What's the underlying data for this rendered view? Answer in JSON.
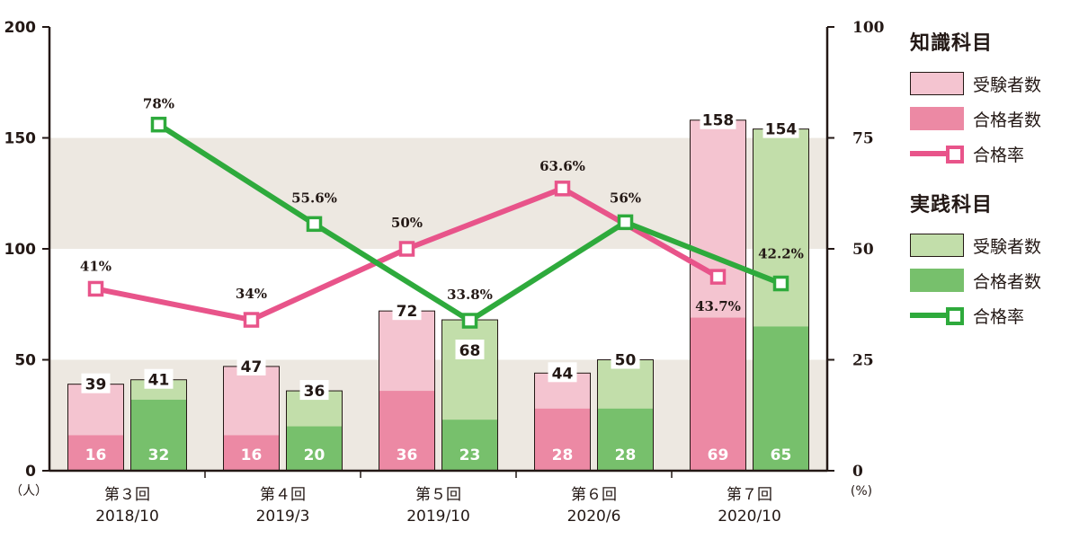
{
  "chart_data": {
    "type": "bar+line",
    "categories": [
      "第３回",
      "第４回",
      "第５回",
      "第６回",
      "第７回"
    ],
    "category_dates": [
      "2018/10",
      "2019/3",
      "2019/10",
      "2020/6",
      "2020/10"
    ],
    "y_left": {
      "unit": "（人）",
      "ylim": [
        0,
        200
      ],
      "ticks": [
        "0",
        "50",
        "100",
        "150",
        "200"
      ]
    },
    "y_right": {
      "unit": "(%)",
      "ylim": [
        0,
        100
      ],
      "ticks": [
        "0",
        "25",
        "50",
        "75",
        "100"
      ]
    },
    "series": [
      {
        "group": "知識科目",
        "name": "受験者数",
        "kind": "bar",
        "values": [
          39,
          47,
          72,
          44,
          158
        ]
      },
      {
        "group": "知識科目",
        "name": "合格者数",
        "kind": "bar",
        "values": [
          16,
          16,
          36,
          28,
          69
        ]
      },
      {
        "group": "知識科目",
        "name": "合格率",
        "kind": "line",
        "values": [
          41,
          34,
          50,
          63.6,
          43.7
        ],
        "labels": [
          "41%",
          "34%",
          "50%",
          "63.6%",
          "43.7%"
        ]
      },
      {
        "group": "実践科目",
        "name": "受験者数",
        "kind": "bar",
        "values": [
          41,
          36,
          68,
          50,
          154
        ]
      },
      {
        "group": "実践科目",
        "name": "合格者数",
        "kind": "bar",
        "values": [
          32,
          20,
          23,
          28,
          65
        ]
      },
      {
        "group": "実践科目",
        "name": "合格率",
        "kind": "line",
        "values": [
          78,
          55.6,
          33.8,
          56,
          42.2
        ],
        "labels": [
          "78%",
          "55.6%",
          "33.8%",
          "56%",
          "42.2%"
        ]
      }
    ],
    "colors": {
      "knowledge_examinees": "#f4c4d0",
      "knowledge_passed": "#ec89a4",
      "knowledge_rate": "#e8548a",
      "practice_examinees": "#c2deaa",
      "practice_passed": "#77c06c",
      "practice_rate": "#2eaa3c",
      "band": "#ede8e1",
      "axis": "#231815"
    }
  },
  "legend": {
    "knowledge_title": "知識科目",
    "practice_title": "実践科目",
    "examinees": "受験者数",
    "passed": "合格者数",
    "rate": "合格率"
  }
}
